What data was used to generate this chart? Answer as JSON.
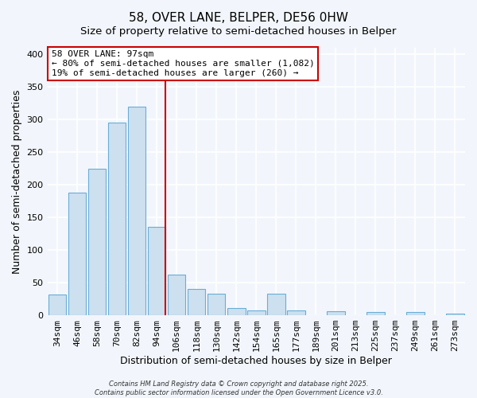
{
  "title": "58, OVER LANE, BELPER, DE56 0HW",
  "subtitle": "Size of property relative to semi-detached houses in Belper",
  "xlabel": "Distribution of semi-detached houses by size in Belper",
  "ylabel": "Number of semi-detached properties",
  "categories": [
    "34sqm",
    "46sqm",
    "58sqm",
    "70sqm",
    "82sqm",
    "94sqm",
    "106sqm",
    "118sqm",
    "130sqm",
    "142sqm",
    "154sqm",
    "165sqm",
    "177sqm",
    "189sqm",
    "201sqm",
    "213sqm",
    "225sqm",
    "237sqm",
    "249sqm",
    "261sqm",
    "273sqm"
  ],
  "values": [
    32,
    188,
    224,
    295,
    320,
    135,
    62,
    40,
    33,
    11,
    8,
    33,
    8,
    0,
    6,
    0,
    5,
    0,
    5,
    0,
    3
  ],
  "bar_color": "#cce0f0",
  "bar_edge_color": "#6aadd5",
  "vline_x_idx": 5,
  "vline_color": "#cc0000",
  "ylim": [
    0,
    410
  ],
  "yticks": [
    0,
    50,
    100,
    150,
    200,
    250,
    300,
    350,
    400
  ],
  "annotation_title": "58 OVER LANE: 97sqm",
  "annotation_line1": "← 80% of semi-detached houses are smaller (1,082)",
  "annotation_line2": "19% of semi-detached houses are larger (260) →",
  "footer1": "Contains HM Land Registry data © Crown copyright and database right 2025.",
  "footer2": "Contains public sector information licensed under the Open Government Licence v3.0.",
  "bg_color": "#f2f6fc",
  "grid_color": "#ffffff",
  "title_fontsize": 11,
  "subtitle_fontsize": 9.5,
  "tick_fontsize": 8,
  "label_fontsize": 9
}
